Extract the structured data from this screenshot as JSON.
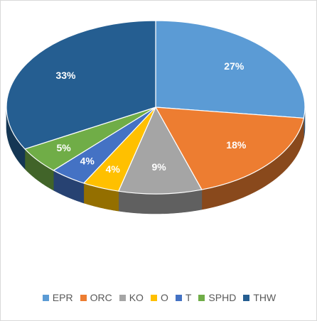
{
  "chart_data": {
    "type": "pie",
    "style": "3d",
    "value_format": "percent",
    "slices": [
      {
        "label": "EPR",
        "value": 27,
        "display": "27%",
        "color": "#5B9BD5"
      },
      {
        "label": "ORC",
        "value": 18,
        "display": "18%",
        "color": "#ED7D31"
      },
      {
        "label": "KO",
        "value": 9,
        "display": "9%",
        "color": "#A5A5A5"
      },
      {
        "label": "O",
        "value": 4,
        "display": "4%",
        "color": "#FFC000"
      },
      {
        "label": "T",
        "value": 4,
        "display": "4%",
        "color": "#4472C4"
      },
      {
        "label": "SPHD",
        "value": 5,
        "display": "5%",
        "color": "#70AD47"
      },
      {
        "label": "THW",
        "value": 33,
        "display": "33%",
        "color": "#255E91"
      }
    ],
    "legend_position": "bottom",
    "start_angle": "12 o'clock",
    "direction": "clockwise"
  }
}
